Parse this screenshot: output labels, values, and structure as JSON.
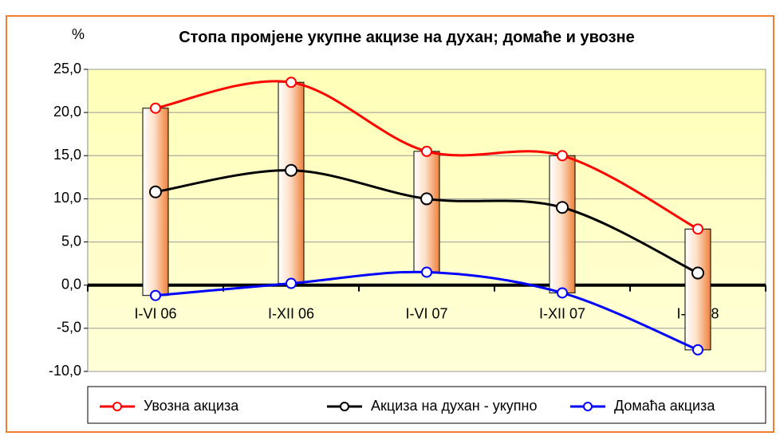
{
  "chart_data": {
    "type": "line",
    "title": "Стопа промјене укупне акцизе на духан; домаће и увозне",
    "y_label": "%",
    "categories": [
      "I-VI 06",
      "I-XII 06",
      "I-VI 07",
      "I-XII 07",
      "I-VI 08"
    ],
    "series": [
      {
        "name": "Увозна акциза",
        "color": "#ff0000",
        "values": [
          20.5,
          23.5,
          15.5,
          15.0,
          6.5
        ]
      },
      {
        "name": "Акциза на духан - укупно",
        "color": "#000000",
        "values": [
          10.8,
          13.3,
          10.0,
          9.0,
          1.4
        ]
      },
      {
        "name": "Домаћа акциза",
        "color": "#0000ff",
        "values": [
          -1.2,
          0.2,
          1.5,
          -0.9,
          -7.5
        ]
      }
    ],
    "high_low_bars": true,
    "ylim": [
      -10,
      25
    ],
    "yticks": [
      {
        "value": -10,
        "label": "-10,0"
      },
      {
        "value": -5,
        "label": "-5,0"
      },
      {
        "value": 0,
        "label": "0,0"
      },
      {
        "value": 5,
        "label": "5,0"
      },
      {
        "value": 10,
        "label": "10,0"
      },
      {
        "value": 15,
        "label": "15,0"
      },
      {
        "value": 20,
        "label": "20,0"
      },
      {
        "value": 25,
        "label": "25,0"
      }
    ],
    "grid": true,
    "legend": "bottom"
  }
}
